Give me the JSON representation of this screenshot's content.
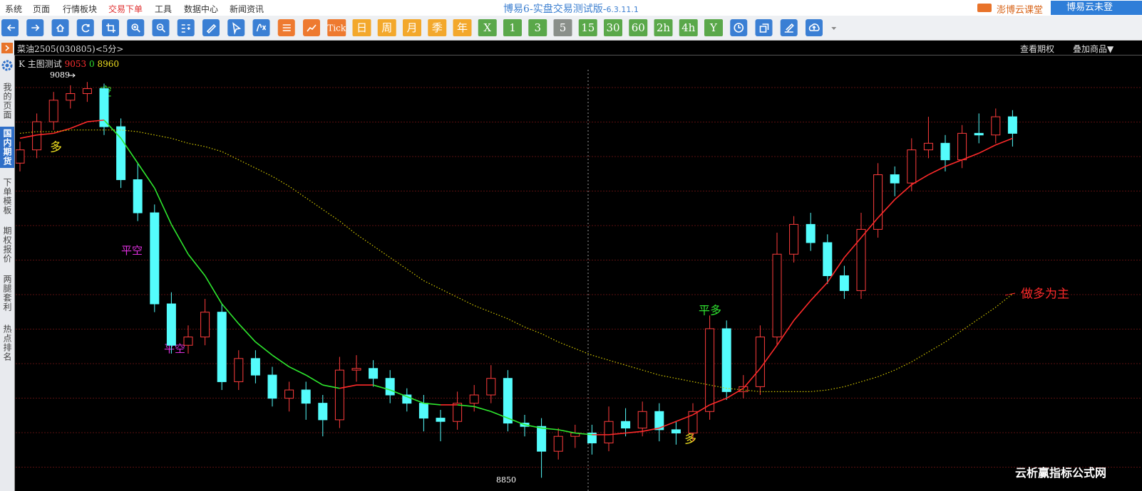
{
  "menu": {
    "items": [
      "系统",
      "页面",
      "行情板块",
      "交易下单",
      "工具",
      "数据中心",
      "新闻资讯"
    ]
  },
  "title": {
    "name": "博易6-实盘交易测试版-",
    "version": "6.3.11.1"
  },
  "account": {
    "course": "澎博云课堂",
    "login": "博易云未登"
  },
  "toolbar": {
    "tick": "Tick",
    "calendar": [
      "日",
      "周",
      "月",
      "季",
      "年"
    ],
    "periods": [
      "X",
      "1",
      "3",
      "5",
      "15",
      "30",
      "60",
      "2h",
      "4h",
      "Y"
    ]
  },
  "instrument": {
    "name": "菜油2505(030805)<5分>",
    "options": "查看期权",
    "overlay": "叠加商品▼"
  },
  "indicator": {
    "name": "K 主图测试",
    "values": [
      9053,
      0,
      8960
    ]
  },
  "sidebar": [
    "我的页面",
    "国内期货",
    "下单模板",
    "期权报价",
    "两腿套利",
    "热点排名"
  ],
  "annotations": {
    "long_1": "多",
    "short_1": "空",
    "close_short_1": "平空",
    "close_short_2": "平空",
    "close_long": "平多",
    "long_2": "多",
    "bias": "做多为主"
  },
  "watermark": "云析赢指标公式网",
  "chart_data": {
    "type": "candlestick",
    "ylim": [
      8845,
      9105
    ],
    "up_color": "#ff3c3c",
    "down_color": "#54fcfc",
    "candles": [
      [
        9040,
        9053,
        9035,
        9048
      ],
      [
        9048,
        9070,
        9043,
        9065
      ],
      [
        9065,
        9083,
        9060,
        9078
      ],
      [
        9078,
        9087,
        9073,
        9082
      ],
      [
        9082,
        9089,
        9077,
        9085
      ],
      [
        9085,
        9088,
        9057,
        9062
      ],
      [
        9062,
        9067,
        9025,
        9030
      ],
      [
        9030,
        9040,
        9005,
        9010
      ],
      [
        9010,
        9015,
        8950,
        8955
      ],
      [
        8955,
        8962,
        8925,
        8930
      ],
      [
        8930,
        8942,
        8925,
        8935
      ],
      [
        8935,
        8958,
        8930,
        8950
      ],
      [
        8950,
        8955,
        8903,
        8908
      ],
      [
        8908,
        8927,
        8903,
        8922
      ],
      [
        8922,
        8927,
        8907,
        8912
      ],
      [
        8912,
        8917,
        8893,
        8898
      ],
      [
        8898,
        8908,
        8890,
        8903
      ],
      [
        8903,
        8908,
        8885,
        8895
      ],
      [
        8895,
        8900,
        8875,
        8885
      ],
      [
        8885,
        8923,
        8880,
        8915
      ],
      [
        8915,
        8924,
        8908,
        8916
      ],
      [
        8916,
        8921,
        8905,
        8910
      ],
      [
        8910,
        8915,
        8895,
        8900
      ],
      [
        8900,
        8904,
        8890,
        8895
      ],
      [
        8895,
        8900,
        8878,
        8886
      ],
      [
        8886,
        8891,
        8872,
        8884
      ],
      [
        8884,
        8902,
        8879,
        8895
      ],
      [
        8895,
        8906,
        8890,
        8900
      ],
      [
        8900,
        8918,
        8895,
        8910
      ],
      [
        8910,
        8915,
        8878,
        8883
      ],
      [
        8883,
        8888,
        8875,
        8881
      ],
      [
        8881,
        8886,
        8850,
        8866
      ],
      [
        8866,
        8880,
        8861,
        8875
      ],
      [
        8875,
        8882,
        8868,
        8877
      ],
      [
        8877,
        8882,
        8864,
        8871
      ],
      [
        8871,
        8893,
        8866,
        8884
      ],
      [
        8884,
        8892,
        8875,
        8880
      ],
      [
        8880,
        8896,
        8875,
        8890
      ],
      [
        8890,
        8895,
        8872,
        8879
      ],
      [
        8879,
        8884,
        8870,
        8877
      ],
      [
        8877,
        8895,
        8872,
        8890
      ],
      [
        8890,
        8948,
        8885,
        8940
      ],
      [
        8940,
        8945,
        8897,
        8902
      ],
      [
        8902,
        8912,
        8898,
        8905
      ],
      [
        8905,
        8942,
        8900,
        8935
      ],
      [
        8935,
        8998,
        8930,
        8985
      ],
      [
        8985,
        9008,
        8980,
        9003
      ],
      [
        9003,
        9010,
        8987,
        8992
      ],
      [
        8992,
        8997,
        8967,
        8972
      ],
      [
        8972,
        8978,
        8958,
        8963
      ],
      [
        8963,
        9010,
        8958,
        9000
      ],
      [
        9000,
        9040,
        8995,
        9033
      ],
      [
        9033,
        9038,
        9020,
        9028
      ],
      [
        9028,
        9055,
        9023,
        9048
      ],
      [
        9048,
        9068,
        9043,
        9052
      ],
      [
        9052,
        9057,
        9035,
        9042
      ],
      [
        9042,
        9063,
        9037,
        9058
      ],
      [
        9058,
        9070,
        9052,
        9057
      ],
      [
        9057,
        9073,
        9052,
        9068
      ],
      [
        9068,
        9072,
        9050,
        9058
      ]
    ],
    "series": [
      {
        "up_color": "#ff2a2a",
        "down_color": "#2ee82e",
        "values": [
          9055,
          9057,
          9058,
          9061,
          9065,
          9066,
          9055,
          9040,
          9025,
          9003,
          8985,
          8972,
          8955,
          8943,
          8932,
          8924,
          8917,
          8912,
          8906,
          8904,
          8906,
          8906,
          8903,
          8899,
          8895,
          8894,
          8894,
          8893,
          8890,
          8886,
          8882,
          8880,
          8879,
          8877,
          8876,
          8876,
          8877,
          8878,
          8880,
          8884,
          8888,
          8894,
          8898,
          8904,
          8916,
          8930,
          8945,
          8957,
          8968,
          8983,
          8995,
          9007,
          9018,
          9027,
          9033,
          9038,
          9042,
          9046,
          9051,
          9055
        ]
      },
      {
        "color": "#d4c800",
        "dotted": true,
        "values": [
          9058,
          9059,
          9059,
          9060,
          9060,
          9060,
          9060,
          9059,
          9057,
          9055,
          9052,
          9050,
          9047,
          9042,
          9037,
          9032,
          9026,
          9019,
          9012,
          9005,
          8997,
          8990,
          8983,
          8976,
          8969,
          8964,
          8959,
          8954,
          8950,
          8946,
          8941,
          8937,
          8932,
          8928,
          8924,
          8921,
          8918,
          8915,
          8912,
          8910,
          8908,
          8906,
          8904,
          8903,
          8902,
          8902,
          8902,
          8902,
          8903,
          8905,
          8908,
          8911,
          8915,
          8920,
          8926,
          8932,
          8939,
          8946,
          8953,
          8961
        ]
      }
    ]
  }
}
